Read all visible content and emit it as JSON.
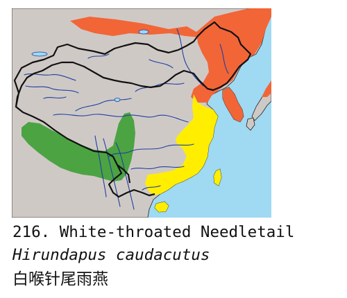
{
  "caption": {
    "number_and_common_name": "216. White-throated Needletail",
    "scientific_name": "Hirundapus caudacutus",
    "chinese_name": "白喉针尾雨燕"
  },
  "legend_colors": {
    "breeding_range": "#f26537",
    "passage_range": "#ffee00",
    "resident_range": "#4ca342",
    "sea": "#9fd9f2",
    "land": "#cfc9c6",
    "borders": "#111111",
    "rivers": "#1f3fa0"
  }
}
